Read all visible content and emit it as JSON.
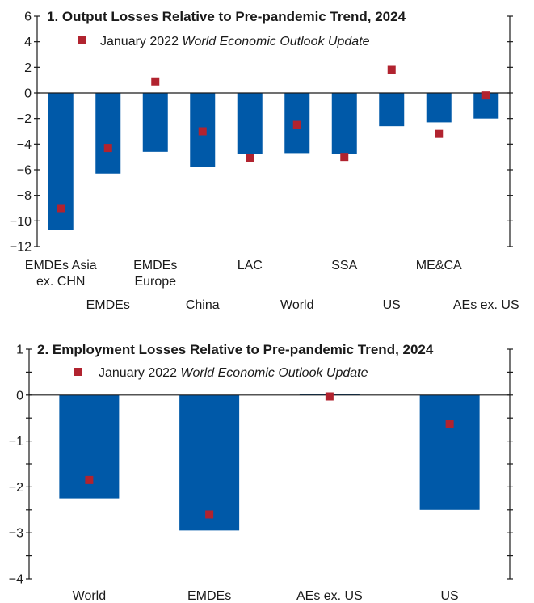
{
  "colors": {
    "bar": "#0059a8",
    "marker": "#b1232f",
    "axis": "#1a1a1a"
  },
  "chart_data": [
    {
      "type": "bar",
      "title": "1. Output Losses Relative to Pre-pandemic Trend, 2024",
      "legend": {
        "prefix": "January 2022 ",
        "italic": "World Economic Outlook Update",
        "placement": "top-left"
      },
      "ylim": [
        -12,
        6
      ],
      "yticks": [
        6,
        4,
        2,
        0,
        -2,
        -4,
        -6,
        -8,
        -10,
        -12
      ],
      "ytick_labels": [
        "6",
        "4",
        "2",
        "0",
        "−2",
        "−4",
        "−6",
        "−8",
        "−10",
        "−12"
      ],
      "categories": [
        "EMDEs Asia ex. CHN",
        "EMDEs",
        "EMDEs Europe",
        "China",
        "LAC",
        "World",
        "SSA",
        "US",
        "ME&CA",
        "AEs ex. US"
      ],
      "category_labels": [
        [
          "EMDEs Asia",
          "ex. CHN"
        ],
        [
          "EMDEs"
        ],
        [
          "EMDEs",
          "Europe"
        ],
        [
          "China"
        ],
        [
          "LAC"
        ],
        [
          "World"
        ],
        [
          "SSA"
        ],
        [
          "US"
        ],
        [
          "ME&CA"
        ],
        [
          "AEs ex. US"
        ]
      ],
      "label_rows": [
        0,
        1,
        0,
        1,
        0,
        1,
        0,
        1,
        0,
        1
      ],
      "series": [
        {
          "kind": "bar",
          "values": [
            -10.7,
            -6.3,
            -4.6,
            -5.8,
            -4.8,
            -4.7,
            -4.8,
            -2.6,
            -2.3,
            -2.0
          ]
        },
        {
          "kind": "marker",
          "name": "January 2022 World Economic Outlook Update",
          "values": [
            -9.0,
            -4.3,
            0.9,
            -3.0,
            -5.1,
            -2.5,
            -5.0,
            1.8,
            -3.2,
            -0.2
          ]
        }
      ]
    },
    {
      "type": "bar",
      "title": "2. Employment Losses Relative to Pre-pandemic Trend, 2024",
      "legend": {
        "prefix": "January 2022 ",
        "italic": "World Economic Outlook Update",
        "placement": "top-left"
      },
      "ylim": [
        -4,
        1
      ],
      "yticks": [
        1,
        0.5,
        0,
        -0.5,
        -1,
        -1.5,
        -2,
        -2.5,
        -3,
        -3.5,
        -4
      ],
      "ytick_labels": [
        "1",
        "",
        "0",
        "",
        "−1",
        "",
        "−2",
        "",
        "−3",
        "",
        "−4"
      ],
      "categories": [
        "World",
        "EMDEs",
        "AEs ex. US",
        "US"
      ],
      "category_labels": [
        [
          "World"
        ],
        [
          "EMDEs"
        ],
        [
          "AEs ex. US"
        ],
        [
          "US"
        ]
      ],
      "label_rows": [
        0,
        0,
        0,
        0
      ],
      "series": [
        {
          "kind": "bar",
          "values": [
            -2.25,
            -2.95,
            0.02,
            -2.5
          ]
        },
        {
          "kind": "marker",
          "name": "January 2022 World Economic Outlook Update",
          "values": [
            -1.85,
            -2.6,
            -0.03,
            -0.62
          ]
        }
      ]
    }
  ]
}
